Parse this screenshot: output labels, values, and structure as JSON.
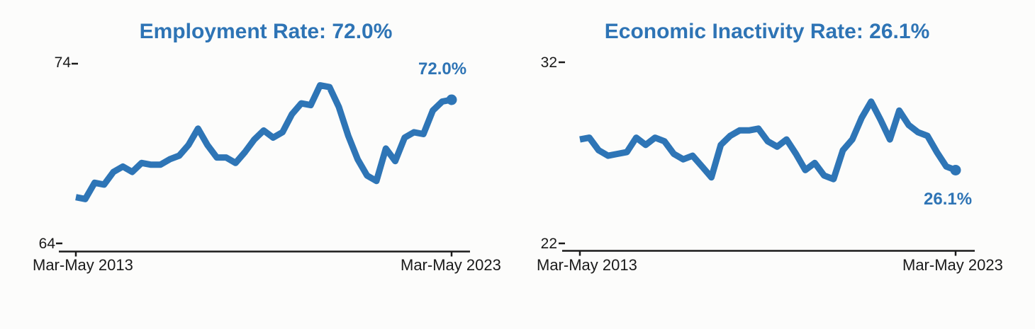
{
  "colors": {
    "accent_blue": "#2E74B5",
    "line_blue": "#2E75B6",
    "axis_black": "#1a1a1a"
  },
  "chart_data": [
    {
      "type": "line",
      "title": "Employment Rate: 72.0%",
      "ylabel": "",
      "xlabel": "",
      "ylim": [
        64,
        74
      ],
      "y_tick_top": "74",
      "y_tick_bottom": "64",
      "x_tick_left": "Mar-May 2013",
      "x_tick_right": "Mar-May 2023",
      "end_label": "72.0%",
      "x_range_note": "quarterly Mar-May 2013 to Mar-May 2023",
      "values": [
        66.6,
        66.5,
        67.4,
        67.3,
        68.0,
        68.3,
        68.0,
        68.5,
        68.4,
        68.4,
        68.7,
        68.9,
        69.5,
        70.4,
        69.5,
        68.8,
        68.8,
        68.5,
        69.1,
        69.8,
        70.3,
        69.9,
        70.2,
        71.2,
        71.8,
        71.7,
        72.8,
        72.7,
        71.6,
        70.0,
        68.7,
        67.8,
        67.5,
        69.3,
        68.6,
        69.9,
        70.2,
        70.1,
        71.4,
        71.9,
        72.0
      ]
    },
    {
      "type": "line",
      "title": "Economic Inactivity Rate: 26.1%",
      "ylabel": "",
      "xlabel": "",
      "ylim": [
        22,
        32
      ],
      "y_tick_top": "32",
      "y_tick_bottom": "22",
      "x_tick_left": "Mar-May 2013",
      "x_tick_right": "Mar-May 2023",
      "end_label": "26.1%",
      "x_range_note": "quarterly Mar-May 2013 to Mar-May 2023",
      "values": [
        27.8,
        27.9,
        27.2,
        26.9,
        27.0,
        27.1,
        27.9,
        27.5,
        27.9,
        27.7,
        27.0,
        26.7,
        26.9,
        26.3,
        25.7,
        27.5,
        28.0,
        28.3,
        28.3,
        28.4,
        27.7,
        27.4,
        27.8,
        27.0,
        26.1,
        26.5,
        25.8,
        25.6,
        27.2,
        27.8,
        29.0,
        29.9,
        28.9,
        27.8,
        29.4,
        28.6,
        28.2,
        28.0,
        27.1,
        26.3,
        26.1
      ]
    }
  ]
}
